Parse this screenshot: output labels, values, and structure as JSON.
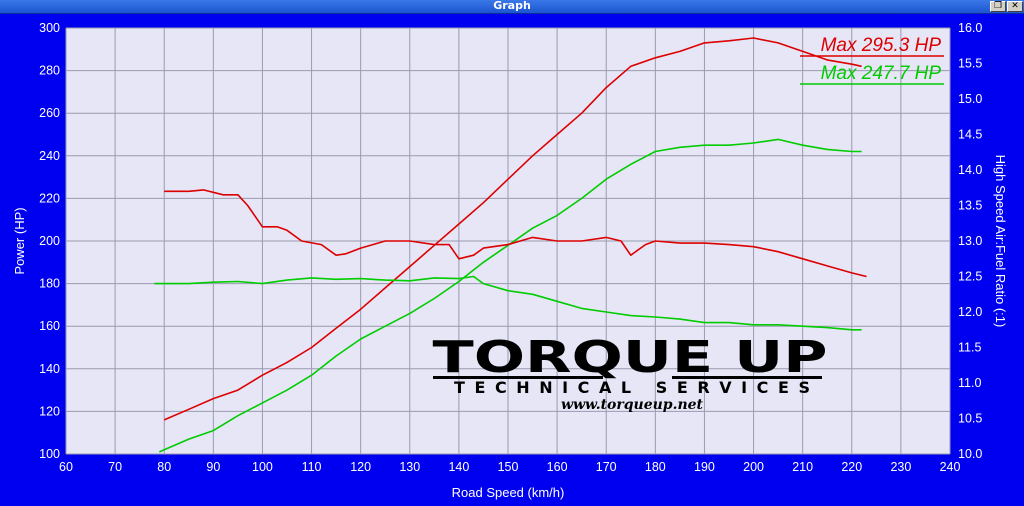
{
  "window": {
    "title": "Graph",
    "restore_icon": "restore-icon",
    "close_icon": "close-icon"
  },
  "chart_data": {
    "type": "line",
    "title": "",
    "xlabel": "Road Speed (km/h)",
    "ylabel": "Power (HP)",
    "y2label": "High Speed Air:Fuel Ratio (:1)",
    "xlim": [
      60,
      240
    ],
    "ylim": [
      100,
      300
    ],
    "y2lim": [
      10.0,
      16.0
    ],
    "x_ticks": [
      "60",
      "70",
      "80",
      "90",
      "100",
      "110",
      "120",
      "130",
      "140",
      "150",
      "160",
      "170",
      "180",
      "190",
      "200",
      "210",
      "220",
      "230",
      "240"
    ],
    "y_ticks": [
      "100",
      "120",
      "140",
      "160",
      "180",
      "200",
      "220",
      "240",
      "260",
      "280",
      "300"
    ],
    "y2_ticks": [
      "10.0",
      "10.5",
      "11.0",
      "11.5",
      "12.0",
      "12.5",
      "13.0",
      "13.5",
      "14.0",
      "14.5",
      "15.0",
      "15.5",
      "16.0"
    ],
    "grid": true,
    "plot_background": "#e6e6f6",
    "series": [
      {
        "name": "Max 295.3 HP",
        "axis": "power",
        "color": "#dd0000",
        "points": [
          [
            80,
            116
          ],
          [
            85,
            121
          ],
          [
            90,
            126
          ],
          [
            95,
            130
          ],
          [
            100,
            137
          ],
          [
            105,
            143
          ],
          [
            110,
            150
          ],
          [
            115,
            159
          ],
          [
            120,
            168
          ],
          [
            125,
            178
          ],
          [
            130,
            188
          ],
          [
            135,
            198
          ],
          [
            140,
            208
          ],
          [
            145,
            218
          ],
          [
            150,
            229
          ],
          [
            155,
            240
          ],
          [
            160,
            250
          ],
          [
            165,
            260
          ],
          [
            170,
            272
          ],
          [
            175,
            282
          ],
          [
            180,
            286
          ],
          [
            185,
            289
          ],
          [
            190,
            293
          ],
          [
            195,
            294
          ],
          [
            200,
            295.3
          ],
          [
            205,
            293
          ],
          [
            210,
            289
          ],
          [
            215,
            285
          ],
          [
            220,
            283
          ],
          [
            222,
            282
          ]
        ]
      },
      {
        "name": "Max 247.7 HP",
        "axis": "power",
        "color": "#00cc00",
        "points": [
          [
            79,
            101
          ],
          [
            85,
            107
          ],
          [
            90,
            111
          ],
          [
            95,
            118
          ],
          [
            100,
            124
          ],
          [
            105,
            130
          ],
          [
            110,
            137
          ],
          [
            115,
            146
          ],
          [
            120,
            154
          ],
          [
            125,
            160
          ],
          [
            130,
            166
          ],
          [
            135,
            173
          ],
          [
            140,
            181
          ],
          [
            145,
            190
          ],
          [
            150,
            198
          ],
          [
            155,
            206
          ],
          [
            160,
            212
          ],
          [
            165,
            220
          ],
          [
            170,
            229
          ],
          [
            175,
            236
          ],
          [
            180,
            242
          ],
          [
            185,
            244
          ],
          [
            190,
            245
          ],
          [
            195,
            245
          ],
          [
            200,
            246
          ],
          [
            205,
            247.7
          ],
          [
            210,
            245
          ],
          [
            215,
            243
          ],
          [
            220,
            242
          ],
          [
            222,
            242
          ]
        ]
      },
      {
        "name": "",
        "axis": "afr",
        "color": "#dd0000",
        "points": [
          [
            80,
            13.7
          ],
          [
            85,
            13.7
          ],
          [
            88,
            13.72
          ],
          [
            92,
            13.65
          ],
          [
            95,
            13.65
          ],
          [
            97,
            13.5
          ],
          [
            100,
            13.2
          ],
          [
            103,
            13.2
          ],
          [
            105,
            13.15
          ],
          [
            108,
            13.0
          ],
          [
            112,
            12.95
          ],
          [
            115,
            12.8
          ],
          [
            117,
            12.82
          ],
          [
            120,
            12.9
          ],
          [
            125,
            13.0
          ],
          [
            130,
            13.0
          ],
          [
            135,
            12.95
          ],
          [
            138,
            12.95
          ],
          [
            140,
            12.75
          ],
          [
            143,
            12.8
          ],
          [
            145,
            12.9
          ],
          [
            150,
            12.95
          ],
          [
            155,
            13.05
          ],
          [
            160,
            13.0
          ],
          [
            165,
            13.0
          ],
          [
            170,
            13.05
          ],
          [
            173,
            13.0
          ],
          [
            175,
            12.8
          ],
          [
            178,
            12.95
          ],
          [
            180,
            13.0
          ],
          [
            185,
            12.97
          ],
          [
            190,
            12.97
          ],
          [
            195,
            12.95
          ],
          [
            200,
            12.92
          ],
          [
            205,
            12.85
          ],
          [
            210,
            12.75
          ],
          [
            215,
            12.65
          ],
          [
            220,
            12.55
          ],
          [
            223,
            12.5
          ]
        ]
      },
      {
        "name": "",
        "axis": "afr",
        "color": "#00cc00",
        "points": [
          [
            78,
            12.4
          ],
          [
            85,
            12.4
          ],
          [
            90,
            12.42
          ],
          [
            95,
            12.43
          ],
          [
            100,
            12.4
          ],
          [
            105,
            12.45
          ],
          [
            110,
            12.48
          ],
          [
            115,
            12.46
          ],
          [
            120,
            12.47
          ],
          [
            125,
            12.45
          ],
          [
            130,
            12.44
          ],
          [
            135,
            12.48
          ],
          [
            140,
            12.47
          ],
          [
            143,
            12.5
          ],
          [
            145,
            12.4
          ],
          [
            150,
            12.3
          ],
          [
            155,
            12.25
          ],
          [
            160,
            12.15
          ],
          [
            165,
            12.05
          ],
          [
            170,
            12.0
          ],
          [
            175,
            11.95
          ],
          [
            180,
            11.93
          ],
          [
            185,
            11.9
          ],
          [
            190,
            11.85
          ],
          [
            195,
            11.85
          ],
          [
            200,
            11.82
          ],
          [
            205,
            11.82
          ],
          [
            210,
            11.8
          ],
          [
            215,
            11.78
          ],
          [
            220,
            11.75
          ],
          [
            222,
            11.75
          ]
        ]
      }
    ],
    "annotations": [
      {
        "text": "Max 295.3 HP",
        "color": "#dd0000"
      },
      {
        "text": "Max 247.7 HP",
        "color": "#00cc00"
      }
    ]
  },
  "logo": {
    "name": "TORQUE UP",
    "subtitle": "TECHNICAL SERVICES",
    "url": "www.torqueup.net"
  }
}
